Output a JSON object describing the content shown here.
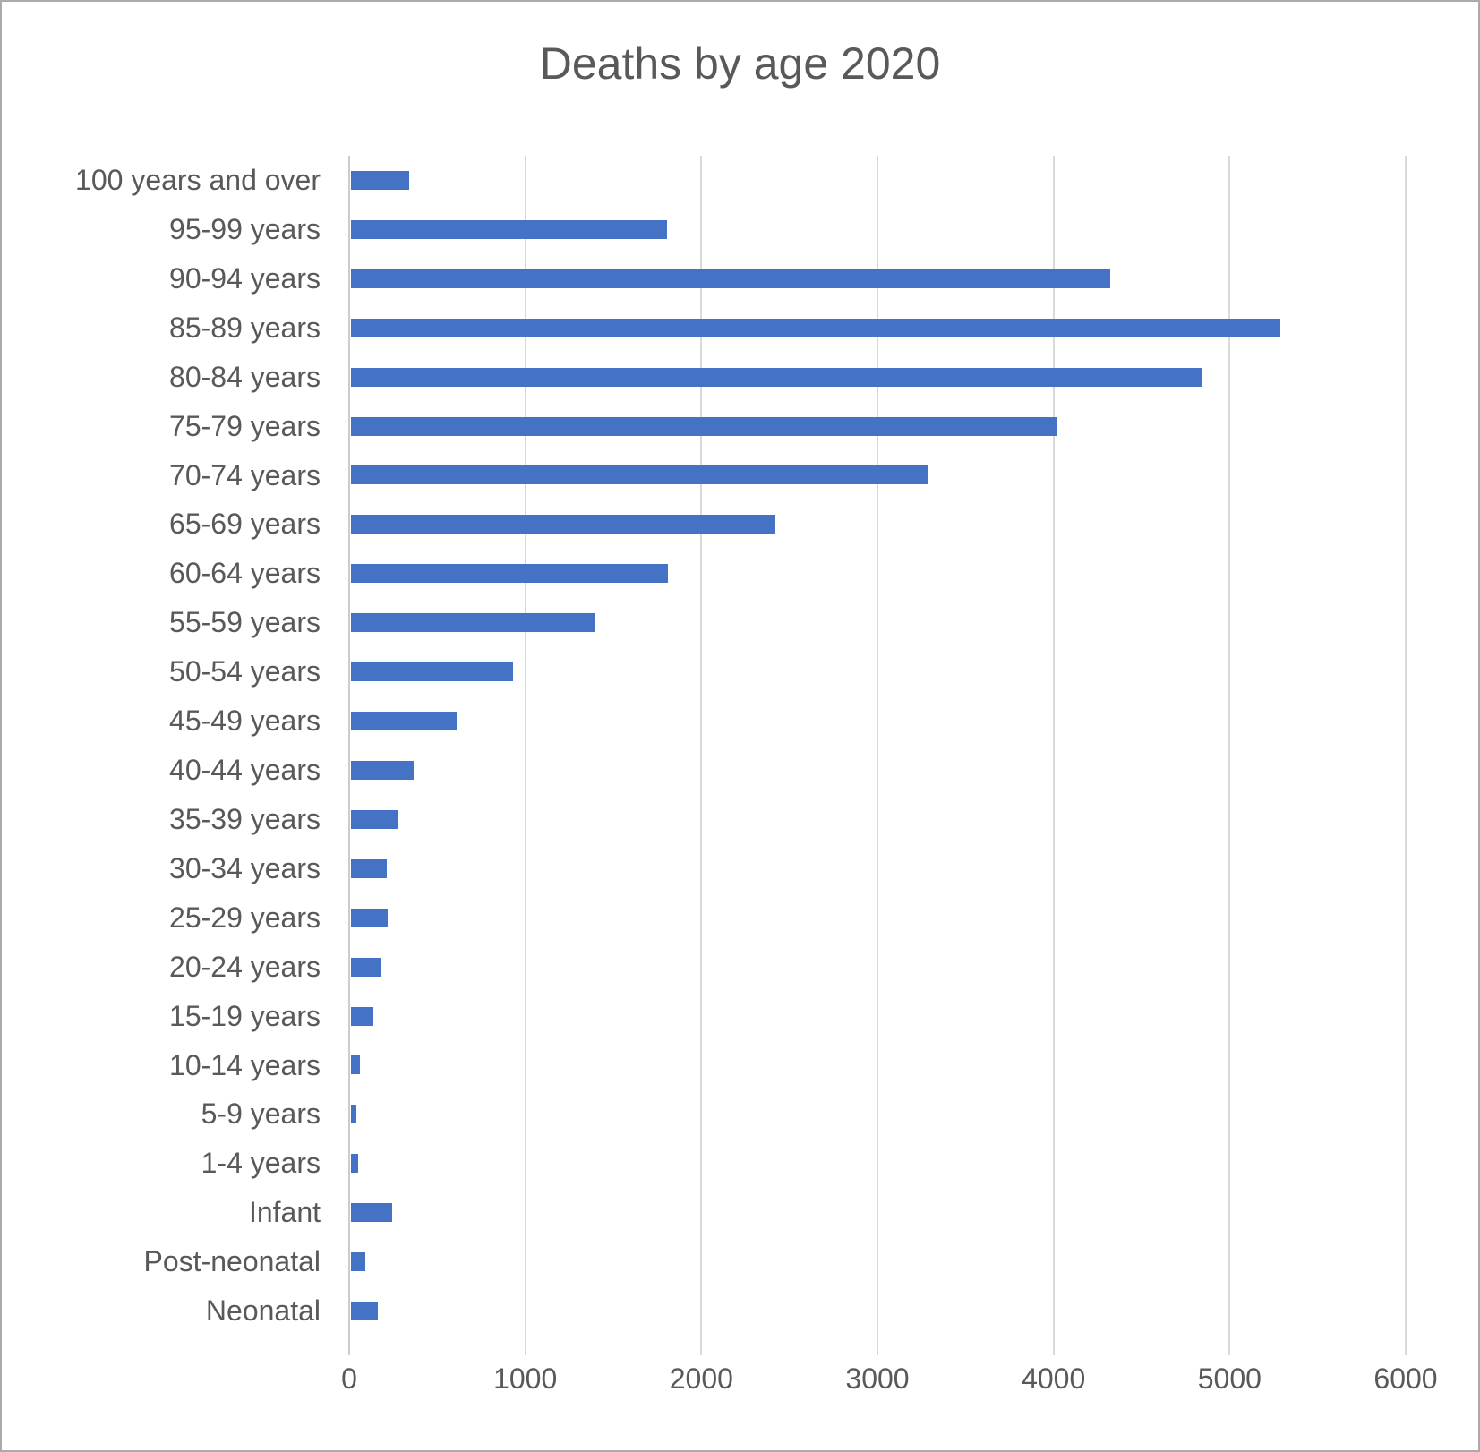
{
  "window": {
    "background": "#ffffff",
    "border_color": "#ababab"
  },
  "chart_data": {
    "type": "bar",
    "orientation": "horizontal",
    "title": "Deaths by age 2020",
    "categories": [
      "100 years and over",
      "95-99 years",
      "90-94 years",
      "85-89 years",
      "80-84 years",
      "75-79 years",
      "70-74 years",
      "65-69 years",
      "60-64 years",
      "55-59 years",
      "50-54 years",
      "45-49 years",
      "40-44 years",
      "35-39 years",
      "30-34 years",
      "25-29 years",
      "20-24 years",
      "15-19 years",
      "10-14 years",
      "5-9 years",
      "1-4 years",
      "Infant",
      "Post-neonatal",
      "Neonatal"
    ],
    "values": [
      330,
      1795,
      4310,
      5280,
      4830,
      4010,
      3275,
      2410,
      1800,
      1390,
      920,
      600,
      355,
      265,
      205,
      210,
      170,
      127,
      51,
      33,
      43,
      232,
      81,
      155
    ],
    "xlabel": "",
    "ylabel": "",
    "xlim": [
      0,
      6000
    ],
    "x_ticks": [
      0,
      1000,
      2000,
      3000,
      4000,
      5000,
      6000
    ],
    "x_tick_labels": [
      "0",
      "1000",
      "2000",
      "3000",
      "4000",
      "5000",
      "6000"
    ],
    "grid": true,
    "legend": false,
    "bar_color": "#4472c4",
    "text_color": "#595959",
    "gridline_color": "#d9d9d9"
  }
}
